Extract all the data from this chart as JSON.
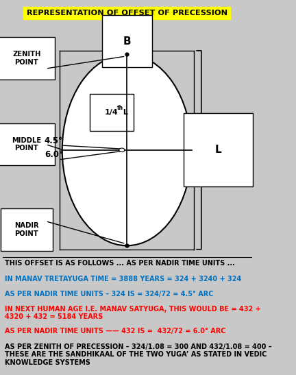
{
  "title": "REPRESENTATION OF OFFSET OF PRECESSION",
  "title_bg": "#ffff00",
  "bg_color": "#c8c8c8",
  "text_lines": [
    {
      "text": "THIS OFFSET IS AS FOLLOWS ... AS PER NADIR TIME UNITS ...",
      "color": "#000000",
      "bold": true,
      "size": 7.0
    },
    {
      "text": "IN MANAV TRETAYUGA TIME = 3888 YEARS = 324 + 3240 + 324",
      "color": "#0070c0",
      "bold": true,
      "size": 7.0
    },
    {
      "text": "AS PER NADIR TIME UNITS – 324 IS = 324/72 = 4.5° ARC",
      "color": "#0070c0",
      "bold": true,
      "size": 7.0
    },
    {
      "text": "IN NEXT HUMAN AGE I.E. MANAV SATYUGA, THIS WOULD BE = 432 +\n4320 + 432 = 5184 YEARS",
      "color": "#ff0000",
      "bold": true,
      "size": 7.0
    },
    {
      "text": "AS PER NADIR TIME UNITS —— 432 IS =  432/72 = 6.0° ARC",
      "color": "#ff0000",
      "bold": true,
      "size": 7.0
    },
    {
      "text": "AS PER ZENITH OF PRECESSION – 324/1.08 = 300 AND 432/1.08 = 400 –\nTHESE ARE THE SANDHIKAAL OF THE TWO YUGA’ AS STATED IN VEDIC\nKNOWLEDGE SYSTEMS",
      "color": "#000000",
      "bold": true,
      "size": 7.0
    }
  ],
  "zenith_label": "ZENITH\nPOINT",
  "middle_label": "MIDDLE\nPOINT",
  "nadir_label": "NADIR\nPOINT",
  "B_label": "B",
  "L_label": "L",
  "quarter_label": "1/4",
  "quarter_sup": "th",
  "quarter_rest": " L",
  "angle1_label": "4.5°",
  "angle2_label": "6.0°"
}
